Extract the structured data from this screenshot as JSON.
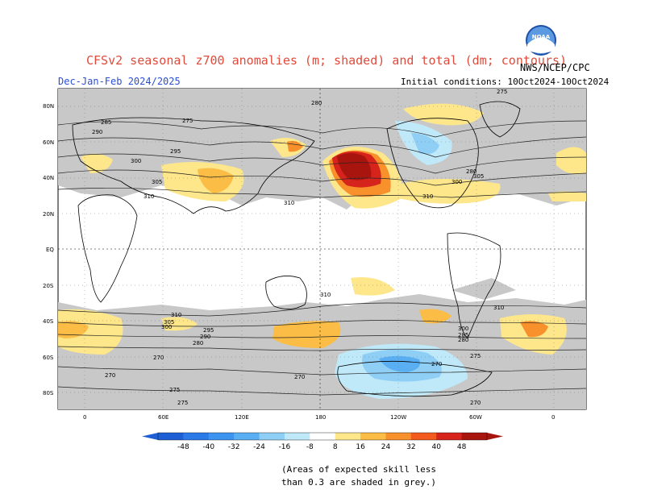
{
  "header": {
    "title": "CFSv2 seasonal z700 anomalies (m; shaded) and total (dm; contours)",
    "subtitle_left": "Dec-Jan-Feb 2024/2025",
    "subtitle_right": "Initial conditions: 10Oct2024-10Oct2024",
    "agency": "NWS/NCEP/CPC",
    "logo_text": "NOAA"
  },
  "map": {
    "lat_labels": [
      "80N",
      "60N",
      "40N",
      "20N",
      "EQ",
      "20S",
      "40S",
      "60S",
      "80S"
    ],
    "lon_labels": [
      "0",
      "60E",
      "120E",
      "180",
      "120W",
      "60W",
      "0"
    ],
    "contour_labels": [
      "280",
      "275",
      "285",
      "290",
      "295",
      "300",
      "305",
      "310",
      "310",
      "310",
      "300",
      "305",
      "310",
      "275",
      "280",
      "270",
      "270",
      "275",
      "270",
      "275",
      "280",
      "290",
      "295",
      "300",
      "305",
      "310",
      "280",
      "285",
      "300",
      "310",
      "270",
      "275",
      "270"
    ]
  },
  "colorbar": {
    "labels": [
      "-48",
      "-40",
      "-32",
      "-24",
      "-16",
      "-8",
      "8",
      "16",
      "24",
      "32",
      "40",
      "48"
    ],
    "colors": [
      "#1f5fd6",
      "#2b7ae8",
      "#3d94f0",
      "#5aaef2",
      "#8fcff6",
      "#bfe8f8",
      "#ffffff",
      "#fde78a",
      "#fbbd45",
      "#f8902c",
      "#f25a1e",
      "#d6231b",
      "#a8150f"
    ]
  },
  "colors": {
    "skill_grey": "#c8c8c8",
    "land_outline": "#000000"
  },
  "note": {
    "line1": "(Areas of expected skill less",
    "line2": "than 0.3 are shaded in grey.)"
  }
}
